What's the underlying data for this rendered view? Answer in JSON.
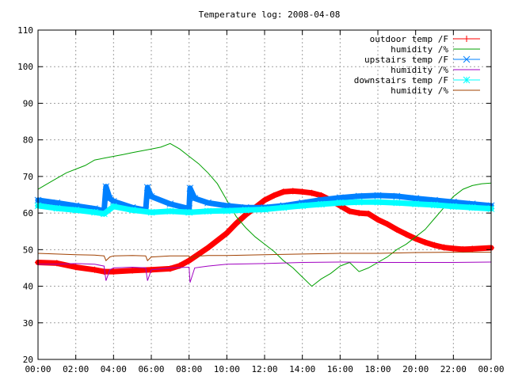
{
  "chart_data": {
    "type": "line",
    "title": "Temperature log: 2008-04-08",
    "xlabel": "",
    "ylabel": "",
    "x_range_hours": [
      0,
      24
    ],
    "ylim": [
      20,
      110
    ],
    "x_ticks": [
      "00:00",
      "02:00",
      "04:00",
      "06:00",
      "08:00",
      "10:00",
      "12:00",
      "14:00",
      "16:00",
      "18:00",
      "20:00",
      "22:00",
      "00:00"
    ],
    "y_ticks": [
      20,
      30,
      40,
      50,
      60,
      70,
      80,
      90,
      100,
      110
    ],
    "grid": true,
    "legend_position": "top-right",
    "series": [
      {
        "name": "outdoor temp /F",
        "color": "#ff0000",
        "marker": "plus",
        "x": [
          0,
          1,
          2,
          3,
          3.5,
          4,
          5,
          6,
          7,
          7.5,
          8,
          9,
          10,
          10.5,
          11,
          11.5,
          12,
          12.5,
          13,
          13.5,
          14,
          14.5,
          15,
          15.5,
          16,
          16.5,
          17,
          17.5,
          18,
          18.5,
          19,
          19.5,
          20,
          20.5,
          21,
          21.5,
          22,
          22.5,
          23,
          24
        ],
        "y": [
          46.5,
          46.3,
          45.2,
          44.5,
          44.0,
          44.0,
          44.3,
          44.5,
          44.8,
          45.6,
          47.0,
          50.5,
          54.5,
          57.2,
          59.5,
          61.5,
          63.5,
          64.8,
          65.8,
          66.0,
          65.8,
          65.5,
          64.8,
          63.5,
          62.0,
          60.5,
          60.0,
          59.8,
          58.2,
          57.0,
          55.5,
          54.2,
          53.0,
          52.0,
          51.2,
          50.6,
          50.3,
          50.1,
          50.2,
          50.5
        ]
      },
      {
        "name": "humidity /%",
        "color": "#00a000",
        "marker": "none",
        "x": [
          0,
          0.5,
          1,
          1.5,
          2,
          2.5,
          3,
          3.5,
          4,
          4.5,
          5,
          5.5,
          6,
          6.5,
          7,
          7.5,
          8,
          8.5,
          9,
          9.5,
          10,
          10.5,
          11,
          11.5,
          12,
          12.5,
          13,
          13.5,
          14,
          14.5,
          15,
          15.5,
          16,
          16.5,
          17,
          17.5,
          18,
          18.5,
          19,
          19.5,
          20,
          20.5,
          21,
          21.5,
          22,
          22.5,
          23,
          23.5,
          24
        ],
        "y": [
          66.5,
          68,
          69.5,
          71,
          72,
          73,
          74.5,
          75,
          75.5,
          76,
          76.5,
          77,
          77.5,
          78,
          79,
          77.5,
          75.5,
          73.5,
          71,
          68,
          63.5,
          59,
          56,
          53.5,
          51.5,
          49.5,
          47,
          45,
          42.5,
          40,
          42,
          43.5,
          45.5,
          46.5,
          44,
          45,
          46.5,
          48,
          50,
          51.5,
          53.5,
          55.5,
          58.5,
          61.5,
          64.5,
          66.5,
          67.5,
          68,
          68.2
        ]
      },
      {
        "name": "upstairs temp /F",
        "color": "#0080ff",
        "marker": "cross",
        "x": [
          0,
          1,
          2,
          3,
          3.5,
          3.6,
          3.8,
          4,
          5,
          5.7,
          5.8,
          6,
          7,
          8,
          8.05,
          8.3,
          9,
          10,
          11,
          12,
          13,
          14,
          15,
          16,
          17,
          18,
          19,
          20,
          21,
          22,
          23,
          24
        ],
        "y": [
          63.5,
          62.8,
          62.0,
          61.2,
          60.6,
          67.2,
          64.0,
          63.2,
          61.5,
          60.8,
          67.0,
          64.5,
          62.5,
          61.2,
          66.8,
          64.0,
          62.8,
          62.0,
          61.5,
          61.5,
          62.0,
          62.8,
          63.6,
          64.2,
          64.6,
          64.8,
          64.6,
          64.0,
          63.5,
          63.0,
          62.5,
          62.0
        ]
      },
      {
        "name": "humidity /%",
        "color": "#a000c0",
        "marker": "none",
        "x": [
          0,
          1,
          2,
          3,
          3.5,
          3.6,
          3.8,
          4,
          5,
          5.7,
          5.8,
          6,
          7,
          8,
          8.05,
          8.3,
          9,
          10,
          12,
          14,
          16,
          18,
          20,
          22,
          24
        ],
        "y": [
          46.0,
          46.0,
          46.2,
          46.0,
          45.5,
          41.5,
          44.5,
          45.0,
          45.2,
          45.0,
          41.5,
          44.5,
          45.0,
          45.2,
          41.0,
          45.0,
          45.5,
          46.0,
          46.2,
          46.5,
          46.6,
          46.5,
          46.5,
          46.5,
          46.6
        ]
      },
      {
        "name": "downstairs temp /F",
        "color": "#00ffff",
        "marker": "star",
        "x": [
          0,
          1,
          2,
          3,
          3.5,
          4,
          5,
          6,
          7,
          8,
          9,
          10,
          11,
          12,
          13,
          14,
          15,
          16,
          17,
          18,
          19,
          20,
          21,
          22,
          23,
          24
        ],
        "y": [
          62.0,
          61.3,
          60.8,
          60.2,
          59.8,
          61.8,
          60.8,
          60.2,
          60.5,
          60.2,
          60.5,
          60.6,
          60.8,
          61.0,
          61.5,
          62.0,
          62.4,
          62.8,
          63.0,
          63.0,
          62.8,
          62.5,
          62.2,
          61.8,
          61.5,
          61.2
        ]
      },
      {
        "name": "humidity /%",
        "color": "#a04000",
        "marker": "none",
        "x": [
          0,
          1,
          2,
          3,
          3.5,
          3.6,
          3.8,
          4,
          5,
          5.7,
          5.8,
          6,
          7,
          8,
          8.05,
          8.3,
          9,
          10,
          12,
          14,
          16,
          18,
          20,
          22,
          24
        ],
        "y": [
          49.0,
          48.8,
          48.6,
          48.5,
          48.3,
          47.0,
          48.0,
          48.3,
          48.4,
          48.3,
          47.0,
          48.0,
          48.3,
          48.3,
          47.5,
          48.2,
          48.4,
          48.4,
          48.6,
          48.8,
          49.0,
          49.0,
          49.2,
          49.3,
          49.3
        ]
      }
    ]
  }
}
